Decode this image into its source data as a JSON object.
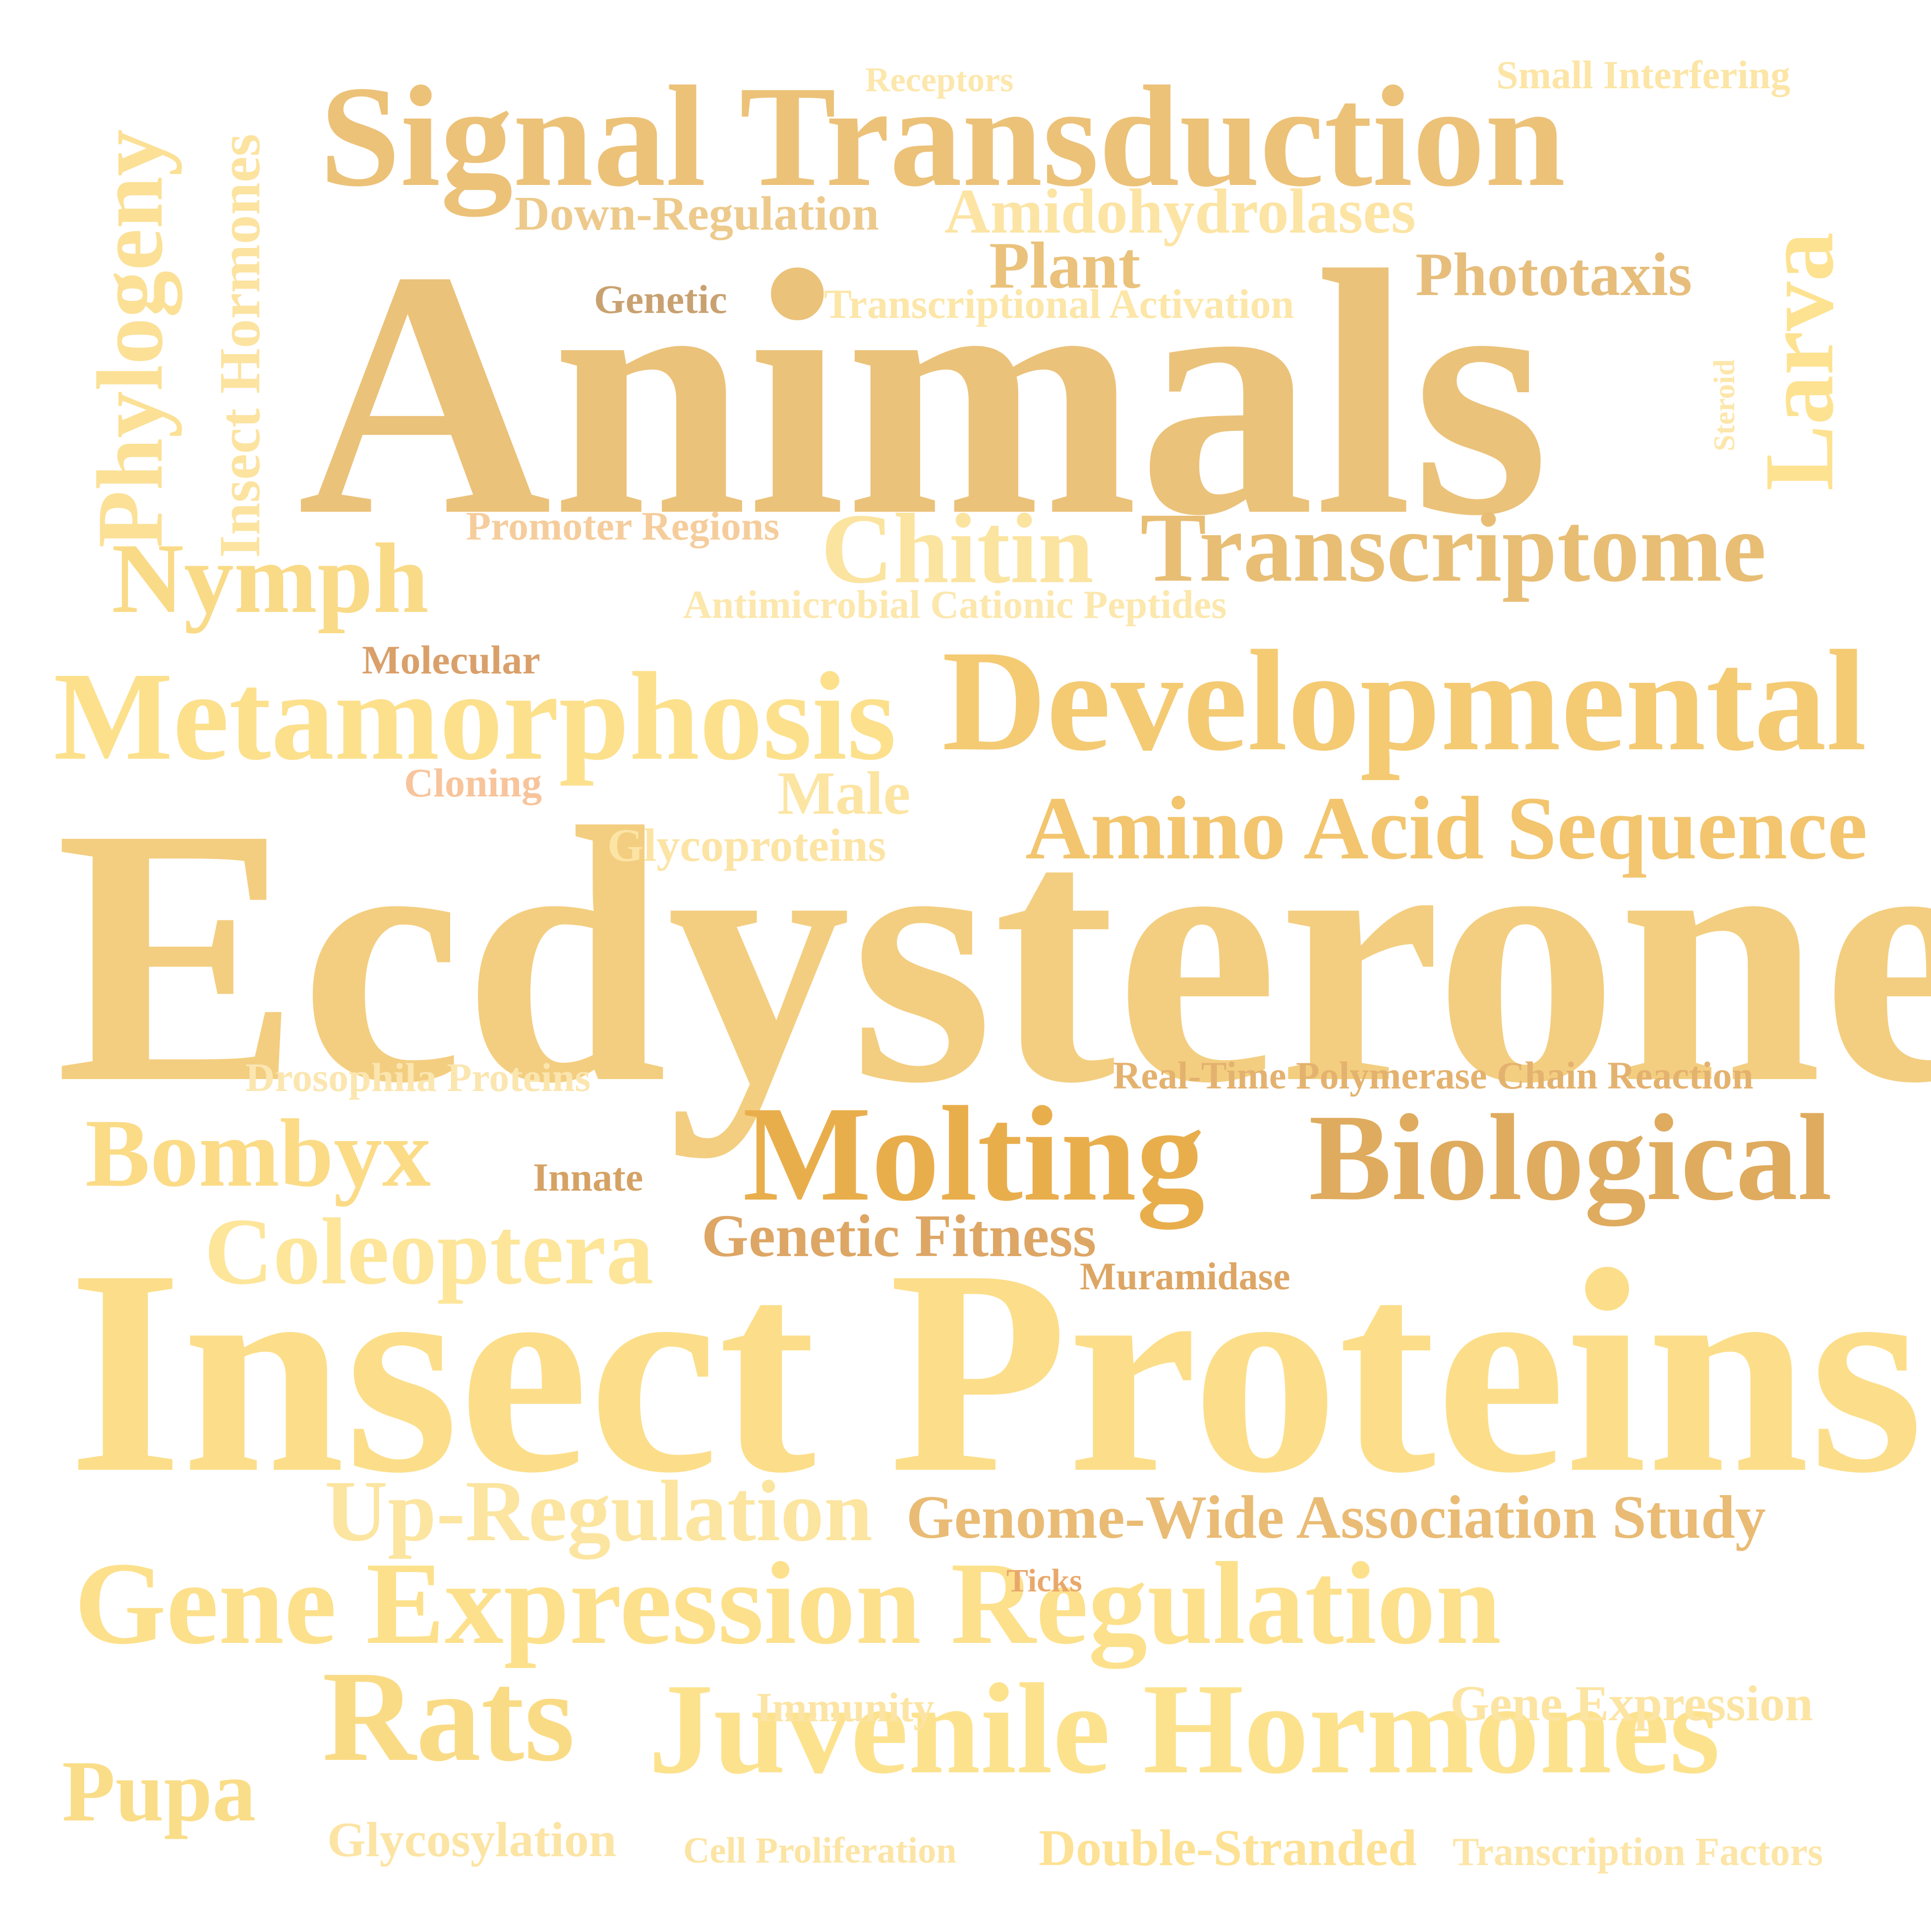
{
  "words": [
    {
      "id": "animals",
      "text": "Animals",
      "color": "#EBC27A"
    },
    {
      "id": "ecdysterone",
      "text": "Ecdysterone",
      "color": "#F3CE80"
    },
    {
      "id": "insect-proteins",
      "text": "Insect Proteins",
      "color": "#FCDE8A"
    },
    {
      "id": "signal-transduction",
      "text": "Signal Transduction",
      "color": "#ECC279"
    },
    {
      "id": "developmental",
      "text": "Developmental",
      "color": "#F4CA73"
    },
    {
      "id": "metamorphosis",
      "text": "Metamorphosis",
      "color": "#FCE08C"
    },
    {
      "id": "gene-expression-regulation",
      "text": "Gene Expression Regulation",
      "color": "#FDE08B"
    },
    {
      "id": "juvenile-hormones",
      "text": "Juvenile Hormones",
      "color": "#FDE28E"
    },
    {
      "id": "molting",
      "text": "Molting",
      "color": "#E9AE4C"
    },
    {
      "id": "biological",
      "text": "Biological",
      "color": "#DFAB5E"
    },
    {
      "id": "transcriptome",
      "text": "Transcriptome",
      "color": "#E8BE75"
    },
    {
      "id": "rats",
      "text": "Rats",
      "color": "#FADB85"
    },
    {
      "id": "amino-acid-sequence",
      "text": "Amino Acid Sequence",
      "color": "#F2C56E"
    },
    {
      "id": "chitin",
      "text": "Chitin",
      "color": "#FBE4A0"
    },
    {
      "id": "nymph",
      "text": "Nymph",
      "color": "#F9DA87"
    },
    {
      "id": "bombyx",
      "text": "Bombyx",
      "color": "#FBDB86"
    },
    {
      "id": "coleoptera",
      "text": "Coleoptera",
      "color": "#FDE59A"
    },
    {
      "id": "up-regulation",
      "text": "Up-Regulation",
      "color": "#FCE5A0"
    },
    {
      "id": "genome-wide-association-study",
      "text": "Genome-Wide Association Study",
      "color": "#E9BB74"
    },
    {
      "id": "pupa",
      "text": "Pupa",
      "color": "#FADD88"
    },
    {
      "id": "phylogeny",
      "text": "Phylogeny",
      "color": "#FBE096"
    },
    {
      "id": "larva",
      "text": "Larva",
      "color": "#FDE291"
    },
    {
      "id": "insect-hormones",
      "text": "Insect Hormones",
      "color": "#FCE3A0"
    },
    {
      "id": "amidohydrolases",
      "text": "Amidohydrolases",
      "color": "#FCE4A4"
    },
    {
      "id": "plant",
      "text": "Plant",
      "color": "#EAC27B"
    },
    {
      "id": "phototaxis",
      "text": "Phototaxis",
      "color": "#E6BD7B"
    },
    {
      "id": "genetic-fitness",
      "text": "Genetic Fitness",
      "color": "#DDA665"
    },
    {
      "id": "male",
      "text": "Male",
      "color": "#FCE5A3"
    },
    {
      "id": "double-stranded",
      "text": "Double-Stranded",
      "color": "#FDE194"
    },
    {
      "id": "down-regulation",
      "text": "Down-Regulation",
      "color": "#EDCA8C"
    },
    {
      "id": "gene-expression",
      "text": "Gene Expression",
      "color": "#FCE4A3"
    },
    {
      "id": "glycosylation",
      "text": "Glycosylation",
      "color": "#FCE4A4"
    },
    {
      "id": "glycoproteins",
      "text": "Glycoproteins",
      "color": "#FCE4A5"
    },
    {
      "id": "transcriptional-activation",
      "text": "Transcriptional Activation",
      "color": "#FCE6A8"
    },
    {
      "id": "promoter-regions",
      "text": "Promoter Regions",
      "color": "#F5CD9C"
    },
    {
      "id": "antimicrobial-cationic-peptides",
      "text": "Antimicrobial Cationic Peptides",
      "color": "#FCE7AD"
    },
    {
      "id": "real-time-pcr",
      "text": "Real-Time Polymerase Chain Reaction",
      "color": "#E4B26F"
    },
    {
      "id": "drosophila-proteins",
      "text": "Drosophila Proteins",
      "color": "#FBE6B0"
    },
    {
      "id": "transcription-factors",
      "text": "Transcription Factors",
      "color": "#FCE5A7"
    },
    {
      "id": "molecular",
      "text": "Molecular",
      "color": "#D9A06A"
    },
    {
      "id": "genetic",
      "text": "Genetic",
      "color": "#C9A171"
    },
    {
      "id": "cloning",
      "text": "Cloning",
      "color": "#F8C49B"
    },
    {
      "id": "innate",
      "text": "Innate",
      "color": "#D5A264"
    },
    {
      "id": "muramidase",
      "text": "Muramidase",
      "color": "#DDA665"
    },
    {
      "id": "receptors",
      "text": "Receptors",
      "color": "#FCE7AC"
    },
    {
      "id": "small-interfering",
      "text": "Small Interfering",
      "color": "#FCE5A6"
    },
    {
      "id": "steroid",
      "text": "Steroid",
      "color": "#FCE6AA"
    },
    {
      "id": "immunity",
      "text": "Immunity",
      "color": "#FCE4A4"
    },
    {
      "id": "cell-proliferation",
      "text": "Cell Proliferation",
      "color": "#FCE4A4"
    },
    {
      "id": "ticks",
      "text": "Ticks",
      "color": "#E9A86B"
    }
  ]
}
